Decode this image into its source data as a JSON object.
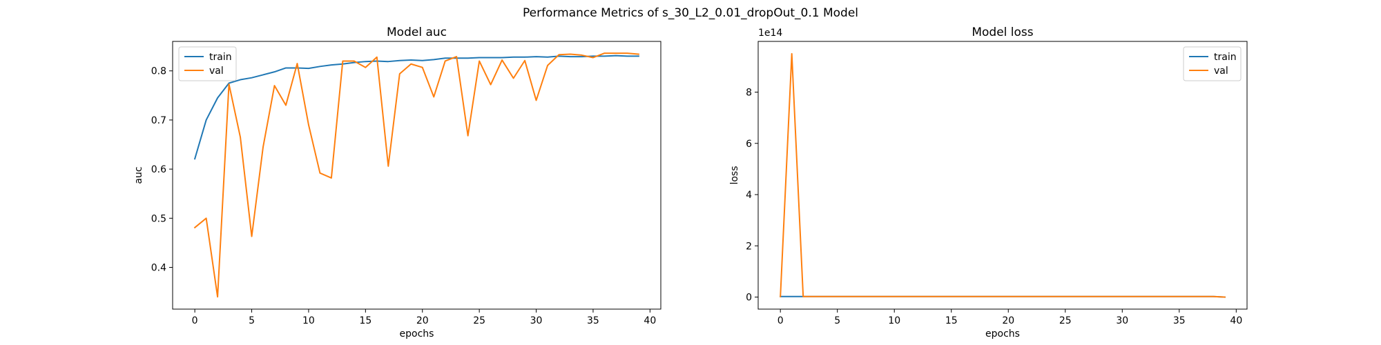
{
  "suptitle": "Performance Metrics of s_30_L2_0.01_dropOut_0.1 Model",
  "chart_data": [
    {
      "type": "line",
      "title": "Model auc",
      "xlabel": "epochs",
      "ylabel": "auc",
      "xlim": [
        -1.95,
        40.95
      ],
      "ylim": [
        0.315,
        0.86
      ],
      "xticks": [
        0,
        5,
        10,
        15,
        20,
        25,
        30,
        35,
        40
      ],
      "yticks": [
        0.4,
        0.5,
        0.6,
        0.7,
        0.8
      ],
      "ytick_labels": [
        "0.4",
        "0.5",
        "0.6",
        "0.7",
        "0.8"
      ],
      "offset_label": "",
      "grid": false,
      "legend_position": "upper-left",
      "series": [
        {
          "name": "train",
          "color": "#1f77b4",
          "x": [
            0,
            1,
            2,
            3,
            4,
            5,
            6,
            7,
            8,
            9,
            10,
            11,
            12,
            13,
            14,
            15,
            16,
            17,
            18,
            19,
            20,
            21,
            22,
            23,
            24,
            25,
            26,
            27,
            28,
            29,
            30,
            31,
            32,
            33,
            34,
            35,
            36,
            37,
            38,
            39
          ],
          "values": [
            0.621,
            0.7,
            0.745,
            0.775,
            0.782,
            0.786,
            0.792,
            0.798,
            0.806,
            0.806,
            0.805,
            0.809,
            0.812,
            0.814,
            0.817,
            0.819,
            0.82,
            0.819,
            0.821,
            0.822,
            0.821,
            0.823,
            0.826,
            0.826,
            0.826,
            0.827,
            0.827,
            0.827,
            0.828,
            0.828,
            0.829,
            0.828,
            0.83,
            0.829,
            0.829,
            0.83,
            0.83,
            0.831,
            0.83,
            0.83
          ]
        },
        {
          "name": "val",
          "color": "#ff7f0e",
          "x": [
            0,
            1,
            2,
            3,
            4,
            5,
            6,
            7,
            8,
            9,
            10,
            11,
            12,
            13,
            14,
            15,
            16,
            17,
            18,
            19,
            20,
            21,
            22,
            23,
            24,
            25,
            26,
            27,
            28,
            29,
            30,
            31,
            32,
            33,
            34,
            35,
            36,
            37,
            38,
            39
          ],
          "values": [
            0.481,
            0.5,
            0.34,
            0.773,
            0.665,
            0.463,
            0.645,
            0.77,
            0.73,
            0.815,
            0.69,
            0.592,
            0.582,
            0.82,
            0.82,
            0.807,
            0.828,
            0.606,
            0.794,
            0.814,
            0.807,
            0.747,
            0.82,
            0.829,
            0.668,
            0.82,
            0.772,
            0.822,
            0.785,
            0.821,
            0.74,
            0.811,
            0.833,
            0.834,
            0.832,
            0.827,
            0.836,
            0.836,
            0.836,
            0.834
          ]
        }
      ]
    },
    {
      "type": "line",
      "title": "Model loss",
      "xlabel": "epochs",
      "ylabel": "loss",
      "xlim": [
        -1.95,
        40.95
      ],
      "ylim": [
        -0.47,
        9.98
      ],
      "xticks": [
        0,
        5,
        10,
        15,
        20,
        25,
        30,
        35,
        40
      ],
      "yticks": [
        0,
        2,
        4,
        6,
        8
      ],
      "ytick_labels": [
        "0",
        "2",
        "4",
        "6",
        "8"
      ],
      "offset_label": "1e14",
      "grid": false,
      "legend_position": "upper-right",
      "series": [
        {
          "name": "train",
          "color": "#1f77b4",
          "x": [
            0,
            1,
            2,
            3,
            4,
            5,
            6,
            7,
            8,
            9,
            10,
            11,
            12,
            13,
            14,
            15,
            16,
            17,
            18,
            19,
            20,
            21,
            22,
            23,
            24,
            25,
            26,
            27,
            28,
            29,
            30,
            31,
            32,
            33,
            34,
            35,
            36,
            37,
            38,
            39
          ],
          "values": [
            0.02,
            0.02,
            0.02,
            0.02,
            0.02,
            0.02,
            0.02,
            0.02,
            0.02,
            0.02,
            0.02,
            0.02,
            0.02,
            0.02,
            0.02,
            0.02,
            0.02,
            0.02,
            0.02,
            0.02,
            0.02,
            0.02,
            0.02,
            0.02,
            0.02,
            0.02,
            0.02,
            0.02,
            0.02,
            0.02,
            0.02,
            0.02,
            0.02,
            0.02,
            0.02,
            0.02,
            0.02,
            0.02,
            0.02,
            0.0
          ]
        },
        {
          "name": "val",
          "color": "#ff7f0e",
          "x": [
            0,
            1,
            2,
            3,
            4,
            5,
            6,
            7,
            8,
            9,
            10,
            11,
            12,
            13,
            14,
            15,
            16,
            17,
            18,
            19,
            20,
            21,
            22,
            23,
            24,
            25,
            26,
            27,
            28,
            29,
            30,
            31,
            32,
            33,
            34,
            35,
            36,
            37,
            38,
            39
          ],
          "values": [
            0.02,
            9.5,
            0.02,
            0.02,
            0.02,
            0.02,
            0.02,
            0.02,
            0.02,
            0.02,
            0.02,
            0.02,
            0.02,
            0.02,
            0.02,
            0.02,
            0.02,
            0.02,
            0.02,
            0.02,
            0.02,
            0.02,
            0.02,
            0.02,
            0.02,
            0.02,
            0.02,
            0.02,
            0.02,
            0.02,
            0.02,
            0.02,
            0.02,
            0.02,
            0.02,
            0.02,
            0.02,
            0.02,
            0.02,
            0.0
          ]
        }
      ]
    }
  ]
}
